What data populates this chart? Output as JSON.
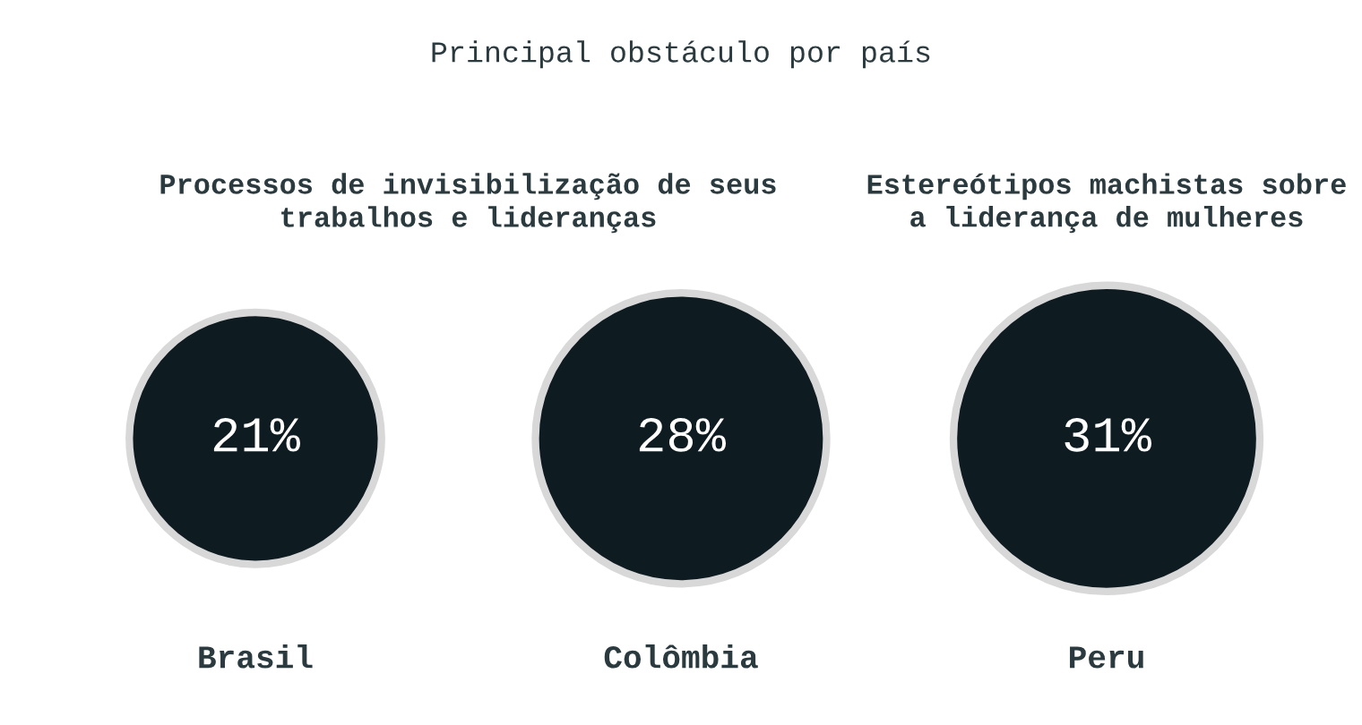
{
  "chart_data": {
    "type": "other",
    "title": "Principal obstáculo por país",
    "categories": [
      "Brasil",
      "Colômbia",
      "Peru"
    ],
    "values": [
      21,
      28,
      31
    ],
    "value_labels": [
      "21%",
      "28%",
      "31%"
    ],
    "color": "#0e1b20",
    "annotations": [
      "Processos de invisibilização de seus trabalhos e lideranças",
      "Estereótipos machistas sobre a liderança de mulheres"
    ]
  }
}
